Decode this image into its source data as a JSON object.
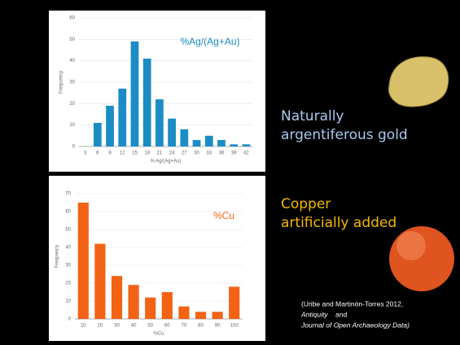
{
  "chart_data": [
    {
      "type": "bar",
      "annotation": "%Ag/(Ag+Au)",
      "x_label": "% Ag/(Ag+Au)",
      "y_label": "Frequency",
      "categories": [
        "3",
        "6",
        "9",
        "12",
        "15",
        "18",
        "21",
        "24",
        "27",
        "30",
        "33",
        "36",
        "39",
        "42"
      ],
      "values": [
        0,
        11,
        19,
        27,
        49,
        41,
        22,
        13,
        8,
        3,
        5,
        3,
        1,
        1
      ],
      "color": "#1b8cc4",
      "ylim": [
        0,
        60
      ],
      "yticks": [
        0,
        10,
        20,
        30,
        40,
        50,
        60
      ],
      "grid": true
    },
    {
      "type": "bar",
      "annotation": "%Cu",
      "x_label": "%Cu",
      "y_label": "Frequency",
      "categories": [
        "10",
        "20",
        "30",
        "40",
        "50",
        "60",
        "70",
        "80",
        "90",
        "100"
      ],
      "values": [
        65,
        42,
        24,
        19,
        12,
        15,
        7,
        4,
        4,
        18
      ],
      "color": "#f26316",
      "ylim": [
        0,
        70
      ],
      "yticks": [
        0,
        10,
        20,
        30,
        40,
        50,
        60,
        70
      ],
      "grid": true
    }
  ],
  "captions": {
    "gold": [
      "Naturally",
      "argentiferous gold"
    ],
    "copper": [
      "Copper",
      "artificially added"
    ]
  },
  "citation": {
    "line1": "(Uribe and Martinón-Torres 2012,",
    "journal": "Antiquity",
    "and": "and",
    "line3": "Journal of Open Archaeology Data)"
  }
}
